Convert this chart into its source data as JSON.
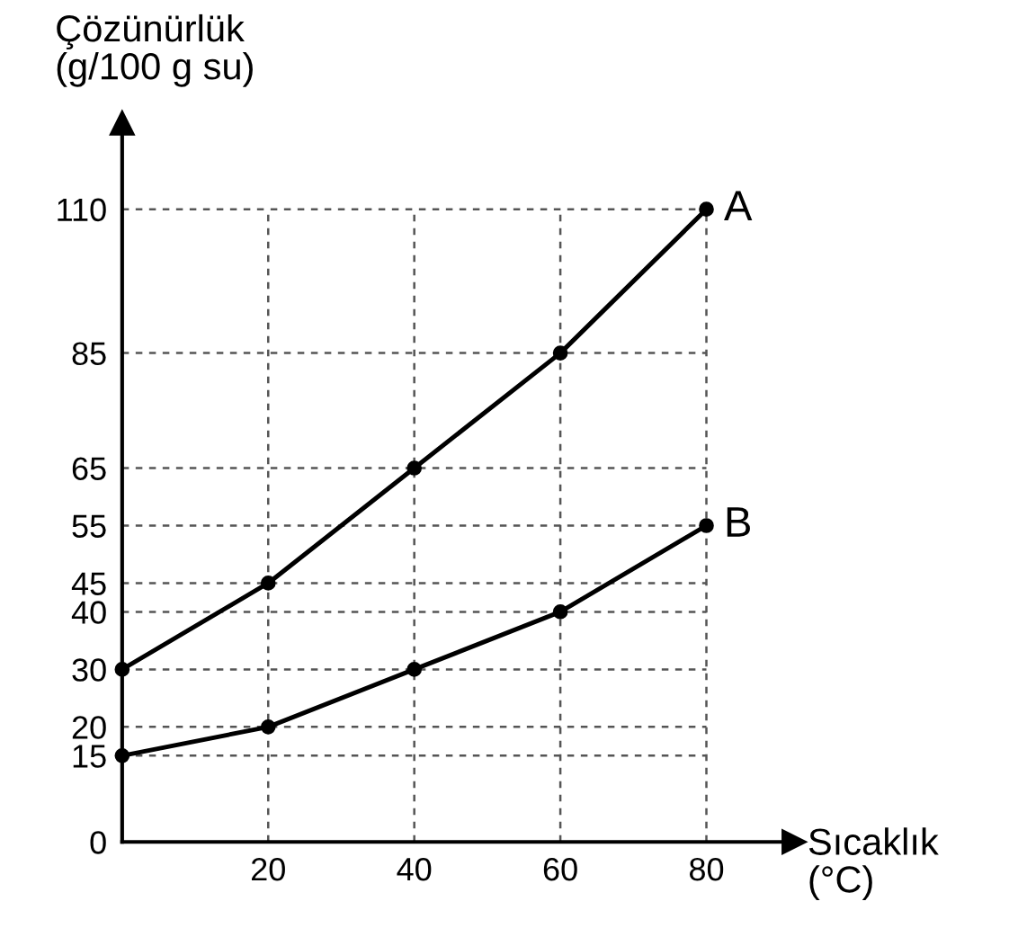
{
  "chart_data": {
    "type": "line",
    "xlabel": "Sıcaklık\n(°C)",
    "ylabel": "Çözünürlük\n(g/100 g su)",
    "x": [
      0,
      20,
      40,
      60,
      80
    ],
    "series": [
      {
        "name": "A",
        "color": "#000000",
        "values": [
          30,
          45,
          65,
          85,
          110
        ]
      },
      {
        "name": "B",
        "color": "#000000",
        "values": [
          15,
          20,
          30,
          40,
          55
        ]
      }
    ],
    "xlim": [
      0,
      92
    ],
    "ylim": [
      0,
      125
    ],
    "xticks": [
      20,
      40,
      60,
      80
    ],
    "yticks": [
      0,
      15,
      20,
      30,
      40,
      45,
      55,
      65,
      85,
      110
    ],
    "grid": true,
    "legend": false,
    "marker": "circle",
    "line_style": "solid"
  }
}
